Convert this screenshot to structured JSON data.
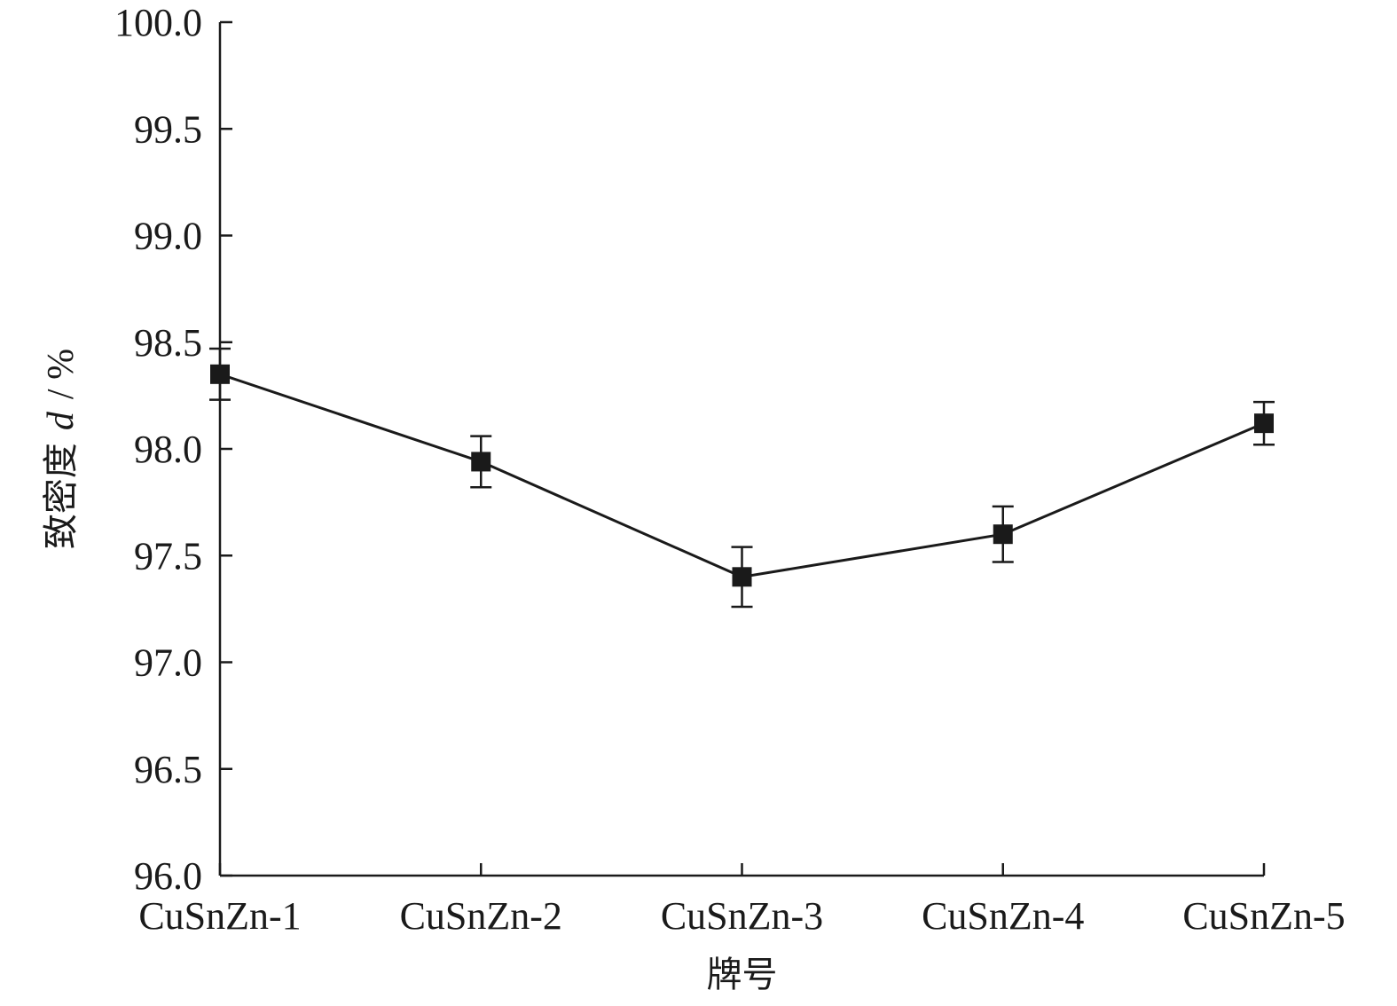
{
  "chart_data": {
    "type": "line",
    "categories": [
      "CuSnZn-1",
      "CuSnZn-2",
      "CuSnZn-3",
      "CuSnZn-4",
      "CuSnZn-5"
    ],
    "series": [
      {
        "values": [
          98.35,
          97.94,
          97.4,
          97.6,
          98.12
        ],
        "errors": [
          0.12,
          0.12,
          0.14,
          0.13,
          0.1
        ],
        "marker": "square",
        "color": "#1a1a1a"
      }
    ],
    "xlabel": "牌号",
    "ylabel": {
      "prefix": "致密度",
      "symbol": "d",
      "unit": "/ %"
    },
    "ylim": [
      96.0,
      100.0
    ],
    "yticks": [
      "96.0",
      "96.5",
      "97.0",
      "97.5",
      "98.0",
      "98.5",
      "99.0",
      "99.5",
      "100.0"
    ],
    "grid": false,
    "legend": "none"
  }
}
